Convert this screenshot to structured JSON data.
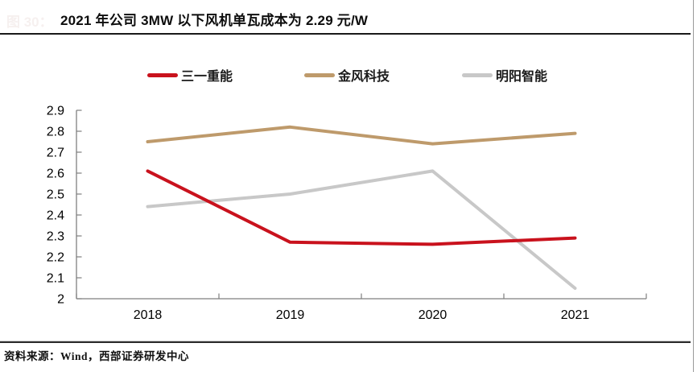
{
  "figure": {
    "label": "图 30：",
    "title": "2021 年公司 3MW 以下风机单瓦成本为 2.29 元/W"
  },
  "source": "资料来源：Wind，西部证券研发中心",
  "colors": {
    "series_red": "#C9121D",
    "series_tan": "#BE9A6B",
    "series_gray": "#C8C8C8",
    "axis": "#7F7F7F",
    "tick_text": "#000000",
    "divider": "#1A1A1A"
  },
  "chart_data": {
    "type": "line",
    "title": "2021 年公司 3MW 以下风机单瓦成本为 2.29 元/W",
    "categories": [
      "2018",
      "2019",
      "2020",
      "2021"
    ],
    "series": [
      {
        "name": "三一重能",
        "color": "#C9121D",
        "values": [
          2.61,
          2.27,
          2.26,
          2.29
        ]
      },
      {
        "name": "金风科技",
        "color": "#BE9A6B",
        "values": [
          2.75,
          2.82,
          2.74,
          2.79
        ]
      },
      {
        "name": "明阳智能",
        "color": "#C8C8C8",
        "values": [
          2.44,
          2.5,
          2.61,
          2.05
        ]
      }
    ],
    "ylim": [
      2,
      2.9
    ],
    "ytick_step": 0.1,
    "ytick_labels": [
      "2",
      "2.1",
      "2.2",
      "2.3",
      "2.4",
      "2.5",
      "2.6",
      "2.7",
      "2.8",
      "2.9"
    ],
    "grid": false,
    "legend_position": "top"
  }
}
